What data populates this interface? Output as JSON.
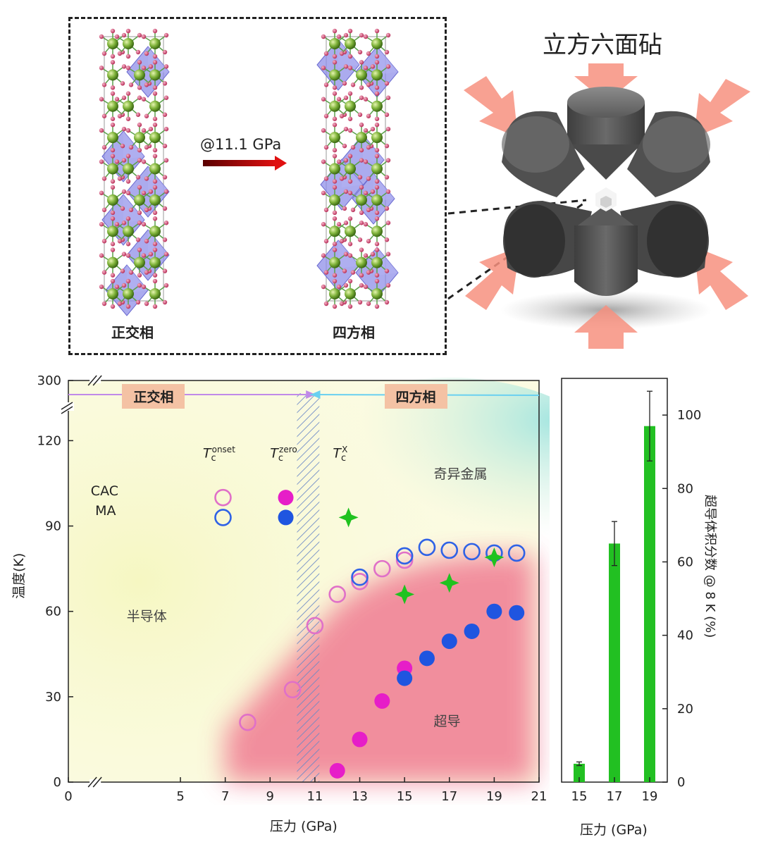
{
  "top": {
    "structure_left_label": "正交相",
    "structure_right_label": "四方相",
    "transition_label": "@11.1 GPa",
    "anvil_title": "立方六面砧"
  },
  "chart_data": [
    {
      "type": "scatter",
      "title": "",
      "xlabel": "压力 (GPa)",
      "ylabel": "温度(K)",
      "xlim": [
        0,
        21
      ],
      "ylim": [
        0,
        130
      ],
      "y_break": {
        "lower": 130,
        "upper": 300
      },
      "xticks": [
        0,
        5,
        7,
        9,
        11,
        13,
        15,
        17,
        19,
        21
      ],
      "yticks": [
        0,
        30,
        60,
        90,
        120,
        300
      ],
      "grid": false,
      "phase_labels": {
        "left": "正交相",
        "right": "四方相"
      },
      "region_labels": {
        "semiconductor": "半导体",
        "strange_metal": "奇异金属",
        "superconductor": "超导"
      },
      "legend": {
        "columns": [
          {
            "symbol": "T",
            "subscript": "c",
            "superscript": "onset"
          },
          {
            "symbol": "T",
            "subscript": "c",
            "superscript": "zero"
          },
          {
            "symbol": "T",
            "subscript": "c",
            "superscript": "X"
          }
        ],
        "rows": [
          "CAC",
          "MA"
        ],
        "placement": "top-left"
      },
      "series": [
        {
          "name": "CAC Tc onset",
          "marker": "open-circle",
          "color": "#e070c8",
          "x": [
            8,
            10,
            11,
            12,
            13,
            14,
            15
          ],
          "y": [
            21,
            32.5,
            55,
            66,
            70.5,
            75,
            78
          ]
        },
        {
          "name": "CAC Tc zero",
          "marker": "filled-circle",
          "color": "#e61ec8",
          "x": [
            12,
            13,
            14,
            15
          ],
          "y": [
            4,
            15,
            28.5,
            40
          ]
        },
        {
          "name": "MA Tc onset",
          "marker": "open-circle",
          "color": "#2f62e6",
          "x": [
            13,
            15,
            16,
            17,
            18,
            19,
            20
          ],
          "y": [
            72,
            79.5,
            82.5,
            81.5,
            81,
            80.5,
            80.5
          ]
        },
        {
          "name": "MA Tc zero",
          "marker": "filled-circle",
          "color": "#1f55e0",
          "x": [
            15,
            16,
            17,
            18,
            19,
            20
          ],
          "y": [
            36.5,
            43.5,
            49.5,
            53,
            60,
            59.5
          ]
        },
        {
          "name": "Tc X",
          "marker": "star4",
          "color": "#1fc21f",
          "x": [
            15,
            17,
            19
          ],
          "y": [
            66,
            70,
            79
          ]
        }
      ],
      "legend_marker_points": [
        {
          "x": 6.9,
          "y": 100,
          "marker": "open-circle",
          "color": "#e070c8"
        },
        {
          "x": 9.7,
          "y": 100,
          "marker": "filled-circle",
          "color": "#e61ec8"
        },
        {
          "x": 6.9,
          "y": 93,
          "marker": "open-circle",
          "color": "#2f62e6"
        },
        {
          "x": 9.7,
          "y": 93,
          "marker": "filled-circle",
          "color": "#1f55e0"
        },
        {
          "x": 12.5,
          "y": 93,
          "marker": "star4",
          "color": "#1fc21f"
        }
      ],
      "transition_hatch_range": [
        10.2,
        11.2
      ]
    },
    {
      "type": "bar",
      "xlabel": "压力 (GPa)",
      "ylabel": "超导体积分数 @ 8 K (%)",
      "categories": [
        "15",
        "17",
        "19"
      ],
      "values": [
        5,
        65,
        97
      ],
      "errors": [
        0.5,
        6,
        9.5
      ],
      "ylim": [
        0,
        110
      ],
      "yticks": [
        0,
        20,
        40,
        60,
        80,
        100
      ],
      "color": "#22c022"
    }
  ]
}
